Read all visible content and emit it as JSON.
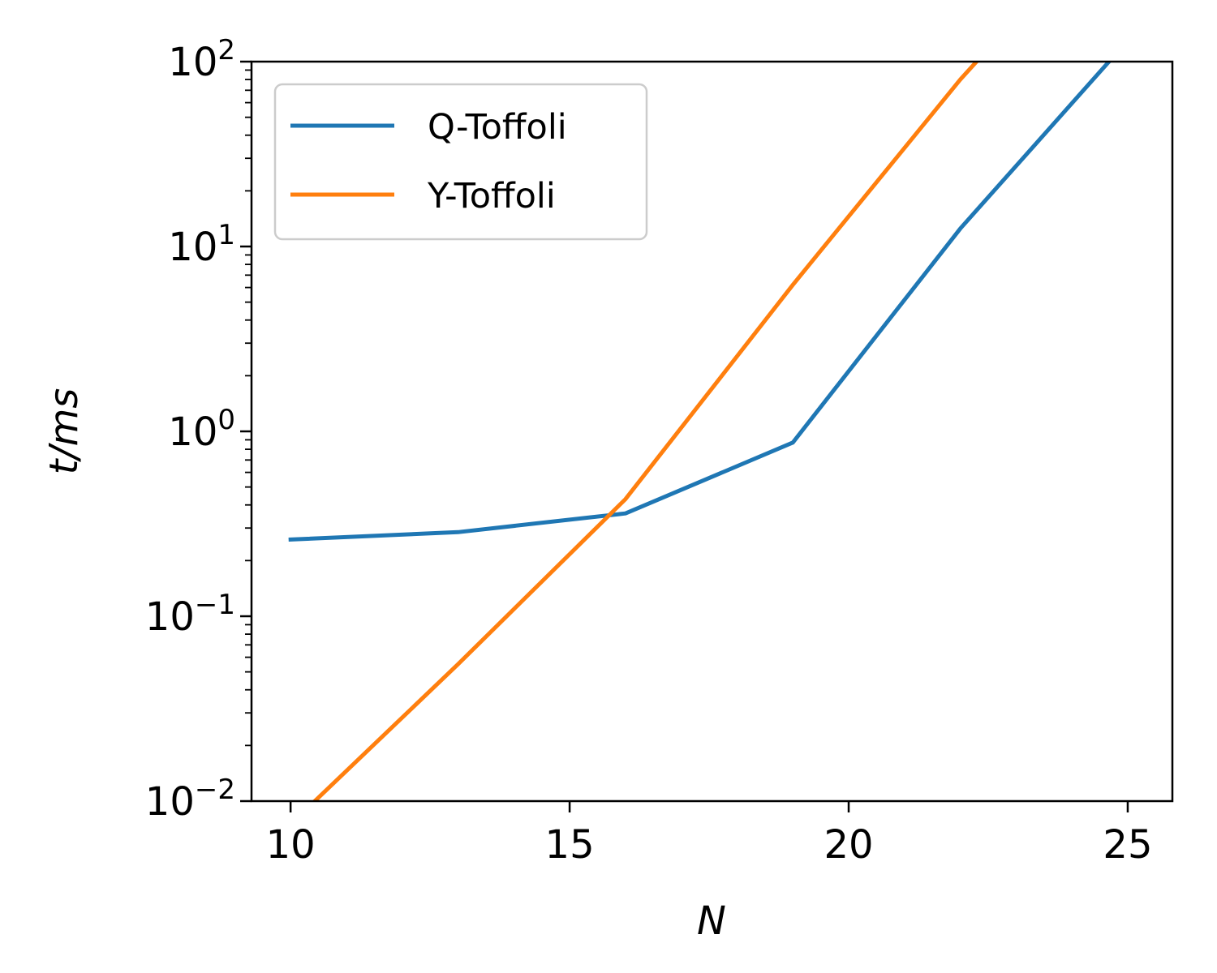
{
  "chart_data": {
    "type": "line",
    "xlabel": "N",
    "ylabel": "t/ms",
    "yscale": "log",
    "xlim": [
      9.3,
      25.8
    ],
    "ylim": [
      0.01,
      100
    ],
    "xticks": [
      {
        "value": 10,
        "label": "10"
      },
      {
        "value": 15,
        "label": "15"
      },
      {
        "value": 20,
        "label": "20"
      },
      {
        "value": 25,
        "label": "25"
      }
    ],
    "yticks": [
      {
        "value": 0.01,
        "base": "10",
        "exp": "−2"
      },
      {
        "value": 0.1,
        "base": "10",
        "exp": "−1"
      },
      {
        "value": 1,
        "base": "10",
        "exp": "0"
      },
      {
        "value": 10,
        "base": "10",
        "exp": "1"
      },
      {
        "value": 100,
        "base": "10",
        "exp": "2"
      }
    ],
    "grid": false,
    "legend_position": "top-left",
    "series": [
      {
        "name": "Q-Toffoli",
        "color": "#1f77b4",
        "x": [
          10,
          13,
          16,
          19,
          22,
          25
        ],
        "y": [
          0.26,
          0.285,
          0.36,
          0.87,
          12.5,
          130
        ]
      },
      {
        "name": "Y-Toffoli",
        "color": "#ff7f0e",
        "x": [
          10,
          13,
          16,
          19,
          22,
          25
        ],
        "y": [
          0.0075,
          0.055,
          0.43,
          6.2,
          80,
          800
        ]
      }
    ]
  }
}
